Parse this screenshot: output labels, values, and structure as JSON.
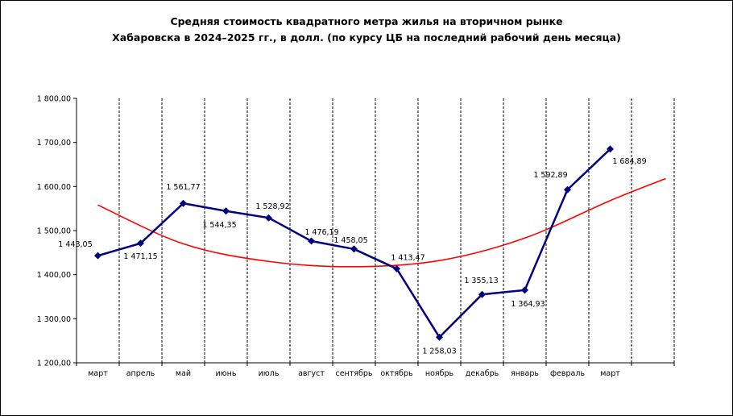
{
  "chart_data": {
    "type": "line",
    "title": [
      "Средняя стоимость квадратного метра жилья на вторичном рынке",
      "Хабаровска в 2024–2025 гг., в долл. (по курсу ЦБ на последний рабочий день месяца)"
    ],
    "categories": [
      "март",
      "апрель",
      "май",
      "июнь",
      "июль",
      "август",
      "сентябрь",
      "октябрь",
      "ноябрь",
      "декабрь",
      "январь",
      "февраль",
      "март"
    ],
    "y_ticks": [
      "1 200,00",
      "1 300,00",
      "1 400,00",
      "1 500,00",
      "1 600,00",
      "1 700,00",
      "1 800,00"
    ],
    "ylim": [
      1200,
      1800
    ],
    "grid": "vertical dashed",
    "legend": "none",
    "series": [
      {
        "values": [
          1443.05,
          1471.15,
          1561.77,
          1544.35,
          1528.92,
          1476.19,
          1458.05,
          1413.47,
          1258.03,
          1355.13,
          1364.93,
          1592.89,
          1684.89
        ],
        "labels": [
          "1 443,05",
          "1 471,15",
          "1 561,77",
          "1 544,35",
          "1 528,92",
          "1 476,19",
          "1 458,05",
          "1 413,47",
          "1 258,03",
          "1 355,13",
          "1 364,93",
          "1 592,89",
          "1 684,89"
        ],
        "color": "#000080",
        "marker": "diamond"
      }
    ],
    "trendline": {
      "type": "polynomial",
      "color": "#ff0000",
      "x": [
        0,
        2,
        4,
        6,
        8,
        10,
        12,
        13.3
      ],
      "y": [
        1558,
        1470,
        1430,
        1418,
        1432,
        1483,
        1568,
        1618
      ]
    }
  }
}
